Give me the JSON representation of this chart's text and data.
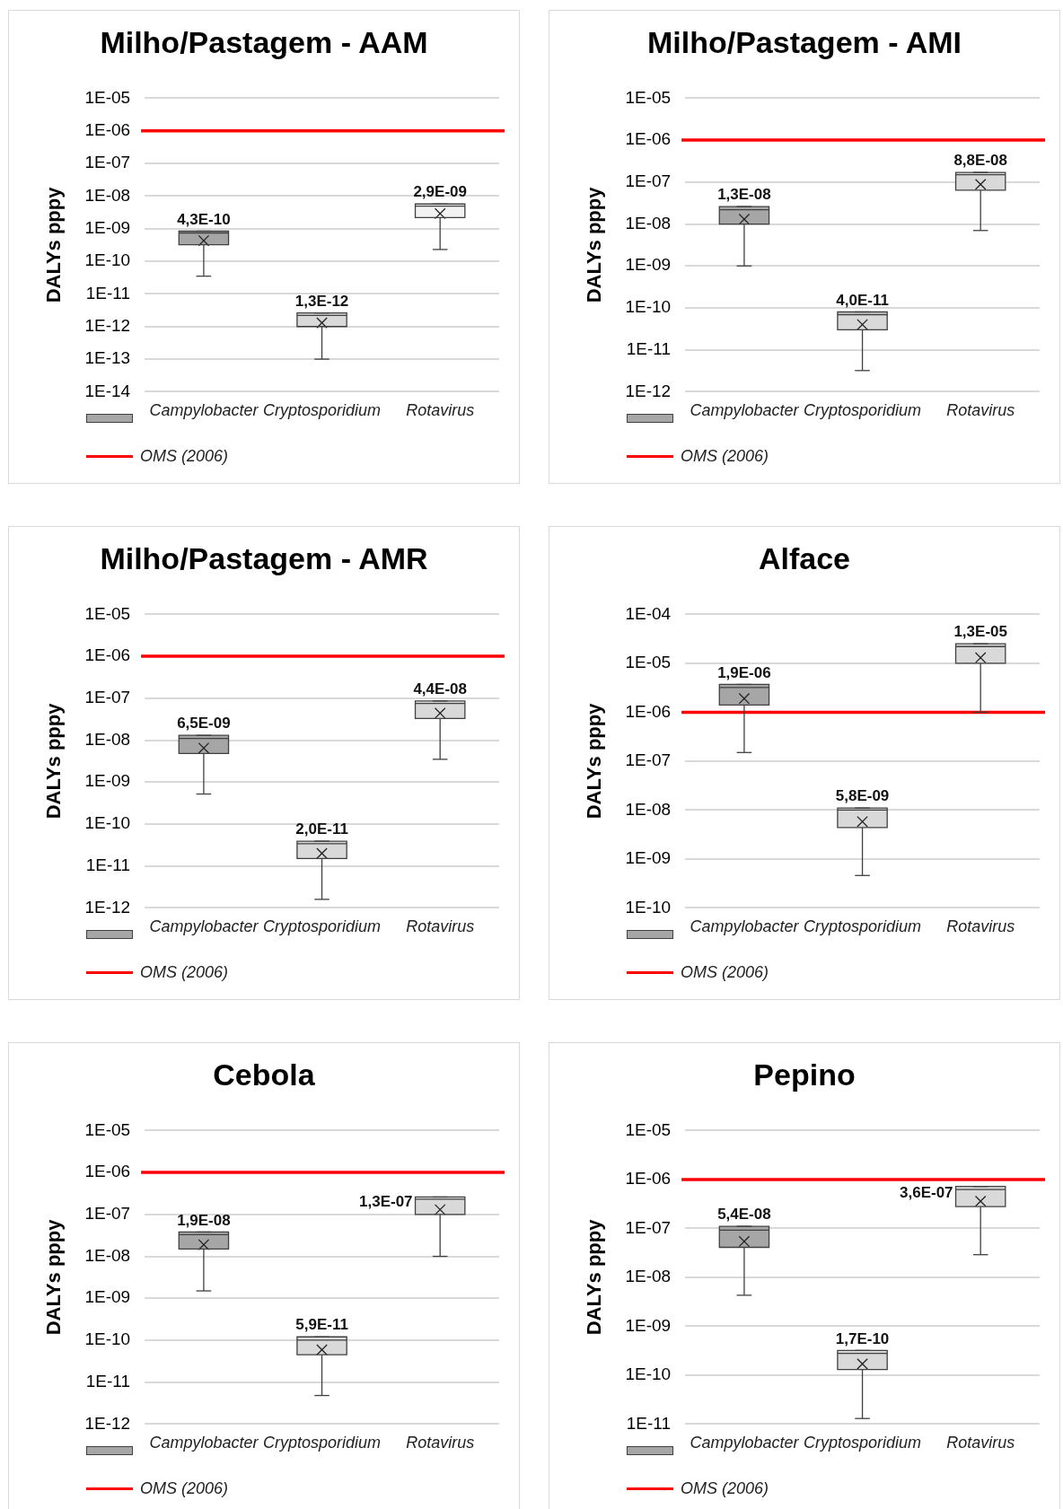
{
  "chart_data": [
    {
      "type": "box",
      "title": "Milho/Pastagem - AAM",
      "ylabel": "DALYs pppy",
      "categories": [
        "Campylobacter",
        "Cryptosporidium",
        "Rotavirus"
      ],
      "colors": [
        "#a6a6a6",
        "#d9d9d9",
        "#f2f2f2"
      ],
      "boxes": [
        {
          "low": 3.5e-11,
          "q1": 3.2e-10,
          "median": 7.4e-10,
          "q3": 8.4e-10,
          "high": 8.4e-10,
          "mean": 4.3e-10
        },
        {
          "low": 1e-13,
          "q1": 1e-12,
          "median": 2.2e-12,
          "q3": 2.6e-12,
          "high": 2.6e-12,
          "mean": 1.3e-12
        },
        {
          "low": 2.3e-10,
          "q1": 2.2e-09,
          "median": 4.9e-09,
          "q3": 5.7e-09,
          "high": 5.7e-09,
          "mean": 2.9e-09
        }
      ],
      "value_labels": [
        "4,3E-10",
        "1,3E-12",
        "2,9E-09"
      ],
      "log": true,
      "ylim": [
        1e-14,
        1e-05
      ],
      "yticks": [
        {
          "value": 1e-05,
          "label": "1E-05"
        },
        {
          "value": 1e-06,
          "label": "1E-06"
        },
        {
          "value": 1e-07,
          "label": "1E-07"
        },
        {
          "value": 1e-08,
          "label": "1E-08"
        },
        {
          "value": 1e-09,
          "label": "1E-09"
        },
        {
          "value": 1e-10,
          "label": "1E-10"
        },
        {
          "value": 1e-11,
          "label": "1E-11"
        },
        {
          "value": 1e-12,
          "label": "1E-12"
        },
        {
          "value": 1e-13,
          "label": "1E-13"
        },
        {
          "value": 1e-14,
          "label": "1E-14"
        }
      ],
      "ref_lines": [
        {
          "axis": "y",
          "value": 1e-06,
          "label": "OMS (2006)",
          "color": "#ff0000"
        }
      ],
      "grid": "y",
      "legend": "bottom"
    },
    {
      "type": "box",
      "title": "Milho/Pastagem - AMI",
      "ylabel": "DALYs pppy",
      "categories": [
        "Campylobacter",
        "Cryptosporidium",
        "Rotavirus"
      ],
      "colors": [
        "#a6a6a6",
        "#d9d9d9",
        "#d9d9d9"
      ],
      "boxes": [
        {
          "low": 1e-09,
          "q1": 1e-08,
          "median": 2.2e-08,
          "q3": 2.6e-08,
          "high": 2.6e-08,
          "mean": 1.3e-08
        },
        {
          "low": 3.2e-12,
          "q1": 3e-11,
          "median": 6.9e-11,
          "q3": 8e-11,
          "high": 8e-11,
          "mean": 4e-11
        },
        {
          "low": 7e-09,
          "q1": 6.4e-08,
          "median": 1.5e-07,
          "q3": 1.7e-07,
          "high": 1.7e-07,
          "mean": 8.8e-08
        }
      ],
      "value_labels": [
        "1,3E-08",
        "4,0E-11",
        "8,8E-08"
      ],
      "log": true,
      "ylim": [
        1e-12,
        1e-05
      ],
      "yticks": [
        {
          "value": 1e-05,
          "label": "1E-05"
        },
        {
          "value": 1e-06,
          "label": "1E-06"
        },
        {
          "value": 1e-07,
          "label": "1E-07"
        },
        {
          "value": 1e-08,
          "label": "1E-08"
        },
        {
          "value": 1e-09,
          "label": "1E-09"
        },
        {
          "value": 1e-10,
          "label": "1E-10"
        },
        {
          "value": 1e-11,
          "label": "1E-11"
        },
        {
          "value": 1e-12,
          "label": "1E-12"
        }
      ],
      "ref_lines": [
        {
          "axis": "y",
          "value": 1e-06,
          "label": "OMS (2006)",
          "color": "#ff0000"
        }
      ],
      "grid": "y",
      "legend": "bottom"
    },
    {
      "type": "box",
      "title": "Milho/Pastagem - AMR",
      "ylabel": "DALYs pppy",
      "categories": [
        "Campylobacter",
        "Cryptosporidium",
        "Rotavirus"
      ],
      "colors": [
        "#a6a6a6",
        "#d9d9d9",
        "#d9d9d9"
      ],
      "boxes": [
        {
          "low": 5.2e-10,
          "q1": 4.8e-09,
          "median": 1.1e-08,
          "q3": 1.3e-08,
          "high": 1.3e-08,
          "mean": 6.5e-09
        },
        {
          "low": 1.6e-12,
          "q1": 1.5e-11,
          "median": 3.4e-11,
          "q3": 3.9e-11,
          "high": 3.9e-11,
          "mean": 2e-11
        },
        {
          "low": 3.5e-09,
          "q1": 3.3e-08,
          "median": 7.5e-08,
          "q3": 8.6e-08,
          "high": 8.6e-08,
          "mean": 4.4e-08
        }
      ],
      "value_labels": [
        "6,5E-09",
        "2,0E-11",
        "4,4E-08"
      ],
      "log": true,
      "ylim": [
        1e-12,
        1e-05
      ],
      "yticks": [
        {
          "value": 1e-05,
          "label": "1E-05"
        },
        {
          "value": 1e-06,
          "label": "1E-06"
        },
        {
          "value": 1e-07,
          "label": "1E-07"
        },
        {
          "value": 1e-08,
          "label": "1E-08"
        },
        {
          "value": 1e-09,
          "label": "1E-09"
        },
        {
          "value": 1e-10,
          "label": "1E-10"
        },
        {
          "value": 1e-11,
          "label": "1E-11"
        },
        {
          "value": 1e-12,
          "label": "1E-12"
        }
      ],
      "ref_lines": [
        {
          "axis": "y",
          "value": 1e-06,
          "label": "OMS (2006)",
          "color": "#ff0000"
        }
      ],
      "grid": "y",
      "legend": "bottom"
    },
    {
      "type": "box",
      "title": "Alface",
      "ylabel": "DALYs pppy",
      "categories": [
        "Campylobacter",
        "Cryptosporidium",
        "Rotavirus"
      ],
      "colors": [
        "#a6a6a6",
        "#d9d9d9",
        "#d9d9d9"
      ],
      "boxes": [
        {
          "low": 1.5e-07,
          "q1": 1.4e-06,
          "median": 3.2e-06,
          "q3": 3.7e-06,
          "high": 3.7e-06,
          "mean": 1.9e-06
        },
        {
          "low": 4.6e-10,
          "q1": 4.4e-09,
          "median": 1e-08,
          "q3": 1.1e-08,
          "high": 1.1e-08,
          "mean": 5.8e-09
        },
        {
          "low": 1e-06,
          "q1": 1e-05,
          "median": 2.2e-05,
          "q3": 2.5e-05,
          "high": 2.5e-05,
          "mean": 1.3e-05
        }
      ],
      "value_labels": [
        "1,9E-06",
        "5,8E-09",
        "1,3E-05"
      ],
      "log": true,
      "ylim": [
        1e-10,
        0.0001
      ],
      "yticks": [
        {
          "value": 0.0001,
          "label": "1E-04"
        },
        {
          "value": 1e-05,
          "label": "1E-05"
        },
        {
          "value": 1e-06,
          "label": "1E-06"
        },
        {
          "value": 1e-07,
          "label": "1E-07"
        },
        {
          "value": 1e-08,
          "label": "1E-08"
        },
        {
          "value": 1e-09,
          "label": "1E-09"
        },
        {
          "value": 1e-10,
          "label": "1E-10"
        }
      ],
      "ref_lines": [
        {
          "axis": "y",
          "value": 1e-06,
          "label": "OMS (2006)",
          "color": "#ff0000"
        }
      ],
      "grid": "y",
      "legend": "bottom"
    },
    {
      "type": "box",
      "title": "Cebola",
      "ylabel": "DALYs pppy",
      "categories": [
        "Campylobacter",
        "Cryptosporidium",
        "Rotavirus"
      ],
      "colors": [
        "#a6a6a6",
        "#d9d9d9",
        "#d9d9d9"
      ],
      "boxes": [
        {
          "low": 1.5e-09,
          "q1": 1.5e-08,
          "median": 3.3e-08,
          "q3": 3.8e-08,
          "high": 3.8e-08,
          "mean": 1.9e-08
        },
        {
          "low": 4.8e-12,
          "q1": 4.5e-11,
          "median": 1e-10,
          "q3": 1.2e-10,
          "high": 1.2e-10,
          "mean": 5.9e-11
        },
        {
          "low": 1e-08,
          "q1": 1e-07,
          "median": 2.3e-07,
          "q3": 2.6e-07,
          "high": 2.6e-07,
          "mean": 1.3e-07
        }
      ],
      "value_labels": [
        "1,9E-08",
        "5,9E-11",
        "1,3E-07"
      ],
      "log": true,
      "ylim": [
        1e-12,
        1e-05
      ],
      "yticks": [
        {
          "value": 1e-05,
          "label": "1E-05"
        },
        {
          "value": 1e-06,
          "label": "1E-06"
        },
        {
          "value": 1e-07,
          "label": "1E-07"
        },
        {
          "value": 1e-08,
          "label": "1E-08"
        },
        {
          "value": 1e-09,
          "label": "1E-09"
        },
        {
          "value": 1e-10,
          "label": "1E-10"
        },
        {
          "value": 1e-11,
          "label": "1E-11"
        },
        {
          "value": 1e-12,
          "label": "1E-12"
        }
      ],
      "ref_lines": [
        {
          "axis": "y",
          "value": 1e-06,
          "label": "OMS (2006)",
          "color": "#ff0000"
        }
      ],
      "grid": "y",
      "legend": "bottom"
    },
    {
      "type": "box",
      "title": "Pepino",
      "ylabel": "DALYs pppy",
      "categories": [
        "Campylobacter",
        "Cryptosporidium",
        "Rotavirus"
      ],
      "colors": [
        "#a6a6a6",
        "#d9d9d9",
        "#d9d9d9"
      ],
      "boxes": [
        {
          "low": 4.3e-09,
          "q1": 4.1e-08,
          "median": 9.2e-08,
          "q3": 1.1e-07,
          "high": 1.1e-07,
          "mean": 5.4e-08
        },
        {
          "low": 1.3e-11,
          "q1": 1.3e-10,
          "median": 2.8e-10,
          "q3": 3.2e-10,
          "high": 3.2e-10,
          "mean": 1.7e-10
        },
        {
          "low": 2.9e-08,
          "q1": 2.8e-07,
          "median": 6.2e-07,
          "q3": 7.2e-07,
          "high": 7.2e-07,
          "mean": 3.6e-07
        }
      ],
      "value_labels": [
        "5,4E-08",
        "1,7E-10",
        "3,6E-07"
      ],
      "log": true,
      "ylim": [
        1e-11,
        1e-05
      ],
      "yticks": [
        {
          "value": 1e-05,
          "label": "1E-05"
        },
        {
          "value": 1e-06,
          "label": "1E-06"
        },
        {
          "value": 1e-07,
          "label": "1E-07"
        },
        {
          "value": 1e-08,
          "label": "1E-08"
        },
        {
          "value": 1e-09,
          "label": "1E-09"
        },
        {
          "value": 1e-10,
          "label": "1E-10"
        },
        {
          "value": 1e-11,
          "label": "1E-11"
        }
      ],
      "ref_lines": [
        {
          "axis": "y",
          "value": 1e-06,
          "label": "OMS (2006)",
          "color": "#ff0000"
        }
      ],
      "grid": "y",
      "legend": "bottom"
    }
  ]
}
